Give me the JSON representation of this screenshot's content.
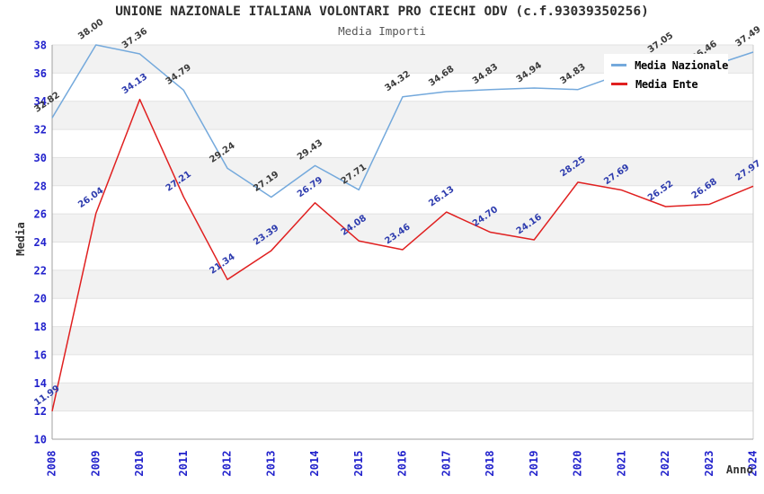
{
  "page": {
    "title": "UNIONE NAZIONALE ITALIANA VOLONTARI PRO CIECHI ODV (c.f.93039350256)",
    "subtitle": "Media Importi"
  },
  "legend": {
    "items": [
      {
        "label": "Media Nazionale",
        "color": "#74a9dc"
      },
      {
        "label": "Media Ente",
        "color": "#e02020"
      }
    ]
  },
  "axes": {
    "y_title": "Media",
    "x_title": "Anno",
    "y_tick_labels": [
      "10",
      "12",
      "14",
      "16",
      "18",
      "20",
      "22",
      "24",
      "26",
      "28",
      "30",
      "32",
      "34",
      "36",
      "38"
    ],
    "x_tick_labels": [
      "2008",
      "2009",
      "2010",
      "2011",
      "2012",
      "2013",
      "2014",
      "2015",
      "2016",
      "2017",
      "2018",
      "2019",
      "2020",
      "2021",
      "2022",
      "2023",
      "2024"
    ]
  },
  "style": {
    "band_fill": "#f2f2f2",
    "grid_color": "#e2e2e2",
    "axis_color": "#a0a0a0",
    "right_border_color": "#cccccc",
    "tick_label_color": "#2222cc",
    "axis_title_color": "#333333"
  },
  "chart_data": {
    "type": "line",
    "title": "UNIONE NAZIONALE ITALIANA VOLONTARI PRO CIECHI ODV (c.f.93039350256)",
    "subtitle": "Media Importi",
    "xlabel": "Anno",
    "ylabel": "Media",
    "ylim": [
      10,
      38
    ],
    "y_tick_step": 2,
    "grid": "horizontal-bands",
    "legend_position": "top-right",
    "x": [
      2008,
      2009,
      2010,
      2011,
      2012,
      2013,
      2014,
      2015,
      2016,
      2017,
      2018,
      2019,
      2020,
      2021,
      2022,
      2023,
      2024
    ],
    "series": [
      {
        "name": "Media Nazionale",
        "color": "#74a9dc",
        "label_color": "#3b3b3b",
        "values": [
          32.82,
          38.0,
          37.36,
          34.79,
          29.24,
          27.19,
          29.43,
          27.71,
          34.32,
          34.68,
          34.83,
          34.94,
          34.83,
          35.94,
          37.05,
          36.46,
          37.49
        ],
        "label_hidden_indices": [
          13
        ]
      },
      {
        "name": "Media Ente",
        "color": "#e02020",
        "label_color": "#2e3cae",
        "values": [
          11.99,
          26.04,
          34.13,
          27.21,
          21.34,
          23.39,
          26.79,
          24.08,
          23.46,
          26.13,
          24.7,
          24.16,
          28.25,
          27.69,
          26.52,
          26.68,
          27.97
        ],
        "label_hidden_indices": []
      }
    ]
  }
}
